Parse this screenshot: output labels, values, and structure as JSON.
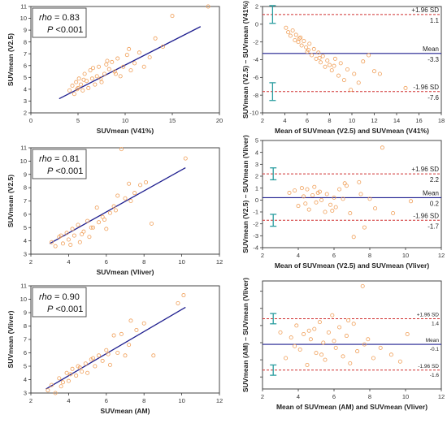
{
  "colors": {
    "line": "#1f1f8f",
    "point": "#f0a05a",
    "dashed": "#d03030",
    "errorbar": "#2a9da0",
    "axis": "#333333"
  },
  "chart_data": [
    {
      "type": "scatter",
      "xlabel": "SUVmean (V41%)",
      "ylabel": "SUVmean (V2.5)",
      "xlim": [
        0,
        20
      ],
      "ylim": [
        2,
        11
      ],
      "xticks": [
        "0",
        "5",
        "10",
        "15",
        "20"
      ],
      "yticks": [
        "2",
        "3",
        "4",
        "5",
        "6",
        "7",
        "8",
        "9",
        "10",
        "11"
      ],
      "stats": {
        "rho_label": "rho",
        "rho_value": "= 0.83",
        "p_label": "P",
        "p_value": "<0.001"
      },
      "fit": {
        "x": [
          3,
          18
        ],
        "y": [
          3.2,
          9.3
        ]
      },
      "points": {
        "x": [
          4.1,
          4.4,
          4.6,
          4.8,
          5.0,
          5.1,
          5.3,
          5.5,
          5.7,
          5.9,
          6.1,
          6.3,
          6.5,
          6.8,
          7.0,
          7.2,
          7.5,
          7.8,
          8.0,
          8.3,
          8.6,
          8.9,
          9.2,
          9.5,
          9.8,
          10.2,
          10.6,
          11.0,
          11.5,
          12.0,
          12.6,
          13.2,
          14.0,
          15.0,
          18.8,
          4.9,
          5.6,
          6.6,
          7.4,
          8.1,
          9.0,
          10.4
        ],
        "y": [
          3.9,
          4.3,
          3.6,
          4.6,
          4.1,
          4.9,
          4.4,
          3.9,
          5.3,
          4.7,
          4.1,
          5.6,
          4.9,
          4.4,
          5.1,
          5.9,
          4.6,
          5.3,
          6.1,
          5.7,
          6.3,
          5.5,
          6.6,
          5.1,
          5.9,
          6.9,
          5.6,
          6.2,
          7.1,
          5.9,
          6.7,
          8.3,
          7.6,
          10.2,
          11.0,
          4.0,
          4.8,
          5.8,
          4.9,
          6.4,
          5.3,
          7.4
        ]
      }
    },
    {
      "type": "scatter",
      "xlabel": "Mean of SUVmean (V2.5) and SUVmean (V41%)",
      "ylabel": "SUVmean (V2.5) – SUVmean (V41%)",
      "xlim": [
        2,
        18
      ],
      "ylim": [
        -10,
        2
      ],
      "xticks": [
        "2",
        "4",
        "6",
        "8",
        "10",
        "12",
        "14",
        "16",
        "18"
      ],
      "yticks": [
        "2",
        "0",
        "-2",
        "-4",
        "-6",
        "-8",
        "-10"
      ],
      "ytickvals": [
        2,
        0,
        -2,
        -4,
        -6,
        -8,
        -10
      ],
      "lines": [
        {
          "label": "+1.96 SD",
          "value": 1.1,
          "value_label": "1.1",
          "style": "dashed"
        },
        {
          "label": "Mean",
          "value": -3.3,
          "value_label": "-3.3",
          "style": "solid"
        },
        {
          "label": "-1.96 SD",
          "value": -7.6,
          "value_label": "-7.6",
          "style": "dashed"
        }
      ],
      "errorbar_x": 2.9,
      "errorbars": [
        [
          0.1,
          2.1
        ],
        [
          -6.6,
          -8.6
        ]
      ],
      "points": {
        "x": [
          4.1,
          4.3,
          4.5,
          4.7,
          4.9,
          5.0,
          5.2,
          5.4,
          5.5,
          5.7,
          5.9,
          6.0,
          6.2,
          6.4,
          6.6,
          6.8,
          7.0,
          7.2,
          7.4,
          7.6,
          7.8,
          8.0,
          8.2,
          8.5,
          8.8,
          9.0,
          9.3,
          9.6,
          9.9,
          10.2,
          10.6,
          11.0,
          11.5,
          12.0,
          12.5,
          14.8,
          5.3,
          6.1,
          7.1,
          8.4
        ],
        "y": [
          -0.4,
          -0.9,
          -1.3,
          -0.7,
          -1.8,
          -1.2,
          -2.0,
          -1.5,
          -2.4,
          -1.9,
          -2.6,
          -3.1,
          -2.2,
          -3.5,
          -2.8,
          -3.9,
          -3.2,
          -4.3,
          -3.6,
          -4.8,
          -4.1,
          -4.6,
          -5.2,
          -3.9,
          -5.8,
          -4.4,
          -6.3,
          -5.1,
          -7.4,
          -5.6,
          -6.6,
          -4.2,
          -3.5,
          -5.3,
          -5.6,
          -7.2,
          -1.6,
          -2.9,
          -3.8,
          -4.7
        ]
      }
    },
    {
      "type": "scatter",
      "xlabel": "SUVmean (Vliver)",
      "ylabel": "SUVmean (V2.5)",
      "xlim": [
        2,
        12
      ],
      "ylim": [
        3,
        11
      ],
      "xticks": [
        "2",
        "4",
        "6",
        "8",
        "10",
        "12"
      ],
      "yticks": [
        "3",
        "4",
        "5",
        "6",
        "7",
        "8",
        "9",
        "10",
        "11"
      ],
      "stats": {
        "rho_label": "rho",
        "rho_value": "= 0.81",
        "p_label": "P",
        "p_value": "<0.001"
      },
      "fit": {
        "x": [
          3,
          10.2
        ],
        "y": [
          3.8,
          9.5
        ]
      },
      "points": {
        "x": [
          3.1,
          3.3,
          3.5,
          3.7,
          3.9,
          4.0,
          4.2,
          4.3,
          4.5,
          4.6,
          4.8,
          5.0,
          5.1,
          5.3,
          5.5,
          5.6,
          5.8,
          6.0,
          6.2,
          6.4,
          6.6,
          6.8,
          7.0,
          7.2,
          7.5,
          7.8,
          8.1,
          8.4,
          10.2,
          3.6,
          4.1,
          4.7,
          5.2,
          5.9,
          6.5,
          7.3
        ],
        "y": [
          3.9,
          3.6,
          4.3,
          3.8,
          4.6,
          4.1,
          4.9,
          4.4,
          5.2,
          3.9,
          4.7,
          5.5,
          4.3,
          5.0,
          6.5,
          5.4,
          5.8,
          4.9,
          6.1,
          6.6,
          7.4,
          10.9,
          7.2,
          8.3,
          7.6,
          8.2,
          8.4,
          5.3,
          10.2,
          4.4,
          3.7,
          4.5,
          5.0,
          5.6,
          6.3,
          7.0
        ]
      }
    },
    {
      "type": "scatter",
      "xlabel": "Mean of SUVmean (V2.5) and SUVmean (Vliver)",
      "ylabel": "SUVmean (V2.5) – SUVmean (Vliver)",
      "xlim": [
        2,
        12
      ],
      "ylim": [
        -4,
        5
      ],
      "xticks": [
        "2",
        "4",
        "6",
        "8",
        "10",
        "12"
      ],
      "yticks": [
        "5",
        "4",
        "3",
        "2",
        "1",
        "0",
        "-1",
        "-2",
        "-3",
        "-4"
      ],
      "ytickvals": [
        5,
        4,
        3,
        2,
        1,
        0,
        -1,
        -2,
        -3,
        -4
      ],
      "lines": [
        {
          "label": "+1.96 SD",
          "value": 2.2,
          "value_label": "2.2",
          "style": "dashed"
        },
        {
          "label": "Mean",
          "value": 0.2,
          "value_label": "0.2",
          "style": "solid"
        },
        {
          "label": "-1.96 SD",
          "value": -1.7,
          "value_label": "-1.7",
          "style": "dashed"
        }
      ],
      "errorbar_x": 2.6,
      "errorbars": [
        [
          1.7,
          2.7
        ],
        [
          -1.2,
          -2.2
        ]
      ],
      "points": {
        "x": [
          3.5,
          3.8,
          4.0,
          4.2,
          4.3,
          4.5,
          4.6,
          4.8,
          4.9,
          5.0,
          5.2,
          5.3,
          5.5,
          5.6,
          5.8,
          6.0,
          6.1,
          6.3,
          6.5,
          6.7,
          6.9,
          7.1,
          7.4,
          7.7,
          8.0,
          8.3,
          8.7,
          9.3,
          10.3,
          4.4,
          5.1,
          5.9,
          6.6,
          7.5
        ],
        "y": [
          0.6,
          0.8,
          -0.5,
          1.0,
          0.3,
          0.9,
          -0.8,
          0.4,
          1.1,
          -0.2,
          0.7,
          0.0,
          -1.0,
          0.5,
          -0.4,
          0.2,
          -0.6,
          0.9,
          0.1,
          1.2,
          -1.1,
          -3.1,
          1.5,
          -2.3,
          0.1,
          -0.7,
          4.4,
          -1.1,
          -0.1,
          -0.3,
          0.6,
          -0.9,
          1.4,
          0.5
        ]
      }
    },
    {
      "type": "scatter",
      "xlabel": "SUVmean (AM)",
      "ylabel": "SUVmean (Vliver)",
      "xlim": [
        2,
        12
      ],
      "ylim": [
        3,
        11
      ],
      "xticks": [
        "2",
        "4",
        "6",
        "8",
        "10",
        "12"
      ],
      "yticks": [
        "3",
        "4",
        "5",
        "6",
        "7",
        "8",
        "9",
        "10",
        "11"
      ],
      "stats": {
        "rho_label": "rho",
        "rho_value": "= 0.90",
        "p_label": "P",
        "p_value": "<0.001"
      },
      "fit": {
        "x": [
          2.8,
          10.2
        ],
        "y": [
          3.3,
          9.4
        ]
      },
      "points": {
        "x": [
          2.9,
          3.1,
          3.3,
          3.5,
          3.7,
          3.9,
          4.0,
          4.2,
          4.4,
          4.5,
          4.7,
          4.9,
          5.0,
          5.2,
          5.4,
          5.6,
          5.8,
          6.0,
          6.2,
          6.4,
          6.6,
          6.8,
          7.0,
          7.3,
          7.6,
          8.0,
          8.5,
          9.8,
          10.1,
          3.6,
          4.1,
          4.6,
          5.3,
          6.1,
          7.2
        ],
        "y": [
          3.2,
          3.6,
          3.0,
          4.1,
          3.8,
          4.5,
          3.9,
          4.8,
          4.3,
          5.0,
          4.6,
          5.2,
          4.5,
          5.5,
          5.0,
          5.8,
          5.4,
          6.2,
          5.1,
          7.3,
          6.0,
          7.4,
          5.8,
          8.4,
          7.7,
          8.2,
          5.8,
          9.7,
          10.3,
          3.5,
          4.4,
          4.9,
          5.6,
          5.9,
          6.6
        ]
      }
    },
    {
      "type": "scatter",
      "xlabel": "Mean of SUVmean (AM) and SUVmean (Vliver)",
      "ylabel": "SUVmean (AM) – SUVmean (Vliver)",
      "xlim": [
        2,
        12
      ],
      "ylim": [
        -2.7,
        3.6
      ],
      "xticks": [
        "2",
        "4",
        "6",
        "8",
        "10",
        "12"
      ],
      "yticks": [],
      "ytickvals": [
        3,
        2,
        1,
        0,
        -1,
        -2
      ],
      "lines": [
        {
          "label": "+1.96 SD",
          "value": 1.4,
          "value_label": "1.4",
          "style": "dashed"
        },
        {
          "label": "Mean",
          "value": -0.1,
          "value_label": "-0.1",
          "style": "solid"
        },
        {
          "label": "-1.96 SD",
          "value": -1.6,
          "value_label": "-1.6",
          "style": "dashed"
        }
      ],
      "errorbar_x": 2.6,
      "errorbars": [
        [
          1.1,
          1.7
        ],
        [
          -1.3,
          -1.9
        ]
      ],
      "points": {
        "x": [
          3.0,
          3.3,
          3.6,
          3.9,
          4.1,
          4.3,
          4.5,
          4.7,
          4.9,
          5.0,
          5.2,
          5.4,
          5.5,
          5.7,
          5.9,
          6.1,
          6.3,
          6.5,
          6.7,
          6.9,
          7.1,
          7.3,
          7.6,
          7.9,
          8.2,
          8.6,
          9.2,
          9.7,
          10.1,
          3.8,
          4.6,
          5.3,
          6.0,
          6.8,
          7.7
        ],
        "y": [
          0.6,
          -0.9,
          0.3,
          1.0,
          -0.4,
          0.5,
          -1.3,
          0.2,
          0.8,
          -0.6,
          1.2,
          0.0,
          -1.0,
          0.6,
          1.6,
          -0.3,
          0.9,
          -0.8,
          0.4,
          -1.2,
          1.1,
          -0.5,
          3.3,
          0.2,
          -0.9,
          -0.3,
          -0.7,
          -1.1,
          0.5,
          -0.2,
          0.7,
          -0.7,
          0.1,
          1.3,
          -0.1
        ]
      }
    }
  ]
}
